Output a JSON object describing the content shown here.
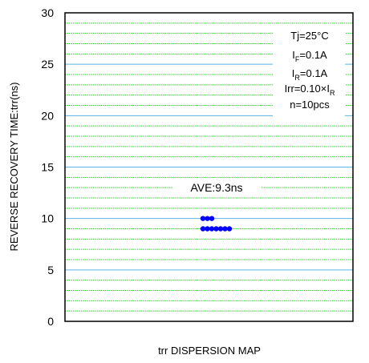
{
  "chart_data": {
    "type": "scatter",
    "title": "",
    "xlabel": "trr DISPERSION MAP",
    "ylabel": "REVERSE RECOVERY TIME:trr(ns)",
    "ylim": [
      0,
      30
    ],
    "y_ticks": [
      "0",
      "5",
      "10",
      "15",
      "20",
      "25",
      "30"
    ],
    "grid": {
      "major": "on",
      "minor": "on"
    },
    "major_grid_color": "#5bb3e6",
    "minor_grid_color": "#33cc33",
    "point_color": "#0000ff",
    "points": [
      {
        "x": 1,
        "y": 10
      },
      {
        "x": 2,
        "y": 10
      },
      {
        "x": 3,
        "y": 10
      },
      {
        "x": 1,
        "y": 9
      },
      {
        "x": 2,
        "y": 9
      },
      {
        "x": 3,
        "y": 9
      },
      {
        "x": 4,
        "y": 9
      },
      {
        "x": 5,
        "y": 9
      },
      {
        "x": 6,
        "y": 9
      },
      {
        "x": 7,
        "y": 9
      }
    ],
    "average_label": "AVE:9.3ns",
    "conditions": {
      "tj": "Tj=25°C",
      "if_main": "I",
      "if_sub": "F",
      "if_rest": "=0.1A",
      "ir_main": "I",
      "ir_sub": "R",
      "ir_rest": "=0.1A",
      "irr_main": "Irr=0.10×I",
      "irr_sub": "R",
      "n": "n=10pcs"
    }
  }
}
